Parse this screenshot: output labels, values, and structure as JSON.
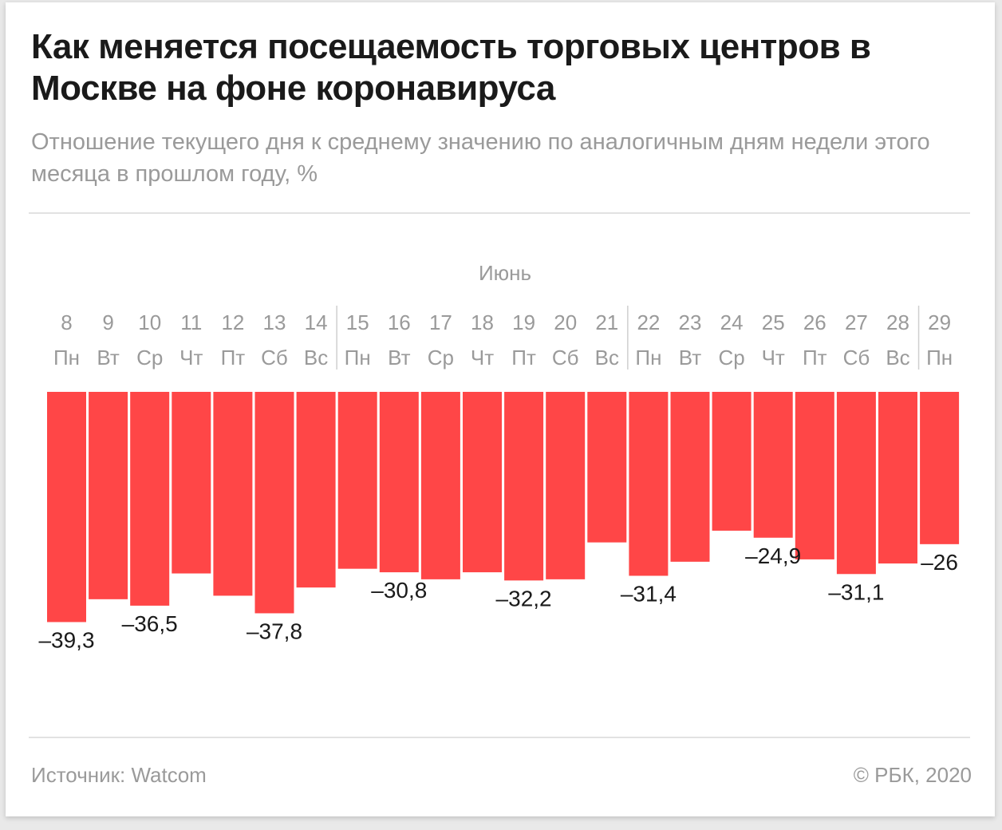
{
  "header": {
    "title": "Как меняется посещаемость торговых центров в Москве на фоне коронавируса",
    "subtitle": "Отношение текущего дня к среднему значению по аналогичным дням недели этого месяца в прошлом году, %"
  },
  "footer": {
    "source": "Источник: Watcom",
    "copyright": "© РБК, 2020"
  },
  "chart_data": {
    "type": "bar",
    "month_label": "Июнь",
    "categories": [
      "8",
      "9",
      "10",
      "11",
      "12",
      "13",
      "14",
      "15",
      "16",
      "17",
      "18",
      "19",
      "20",
      "21",
      "22",
      "23",
      "24",
      "25",
      "26",
      "27",
      "28",
      "29"
    ],
    "weekdays": [
      "Пн",
      "Вт",
      "Ср",
      "Чт",
      "Пт",
      "Сб",
      "Вс",
      "Пн",
      "Вт",
      "Ср",
      "Чт",
      "Пт",
      "Сб",
      "Вс",
      "Пн",
      "Вт",
      "Ср",
      "Чт",
      "Пт",
      "Сб",
      "Вс",
      "Пн"
    ],
    "values": [
      -39.3,
      -35.4,
      -36.5,
      -31.0,
      -34.8,
      -37.8,
      -33.4,
      -30.2,
      -30.8,
      -32.0,
      -30.8,
      -32.2,
      -32.0,
      -25.7,
      -31.4,
      -29.0,
      -23.7,
      -24.9,
      -28.6,
      -31.1,
      -29.3,
      -26.0
    ],
    "data_labels": [
      {
        "index": 0,
        "text": "–39,3"
      },
      {
        "index": 2,
        "text": "–36,5"
      },
      {
        "index": 5,
        "text": "–37,8"
      },
      {
        "index": 8,
        "text": "–30,8"
      },
      {
        "index": 11,
        "text": "–32,2"
      },
      {
        "index": 14,
        "text": "–31,4"
      },
      {
        "index": 17,
        "text": "–24,9"
      },
      {
        "index": 19,
        "text": "–31,1"
      },
      {
        "index": 21,
        "text": "–26"
      }
    ],
    "week_separators_before": [
      "15",
      "22",
      "29"
    ],
    "ylim": [
      -40,
      0
    ],
    "bar_color": "#ff4647",
    "label_color": "#1a1a1a",
    "tick_color": "#9a9a9a",
    "grid": false
  }
}
